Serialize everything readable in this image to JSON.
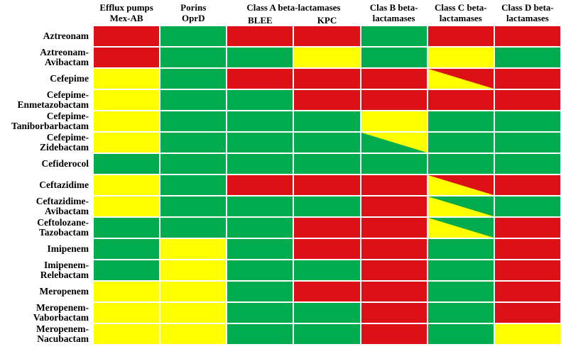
{
  "header": {
    "efflux_line1": "Efflux pumps",
    "efflux_line2": "Mex-AB",
    "porins_line1": "Porins",
    "porins_line2": "OprD",
    "classA_title": "Class A beta-lactamases",
    "classA_sub1": "BLEE",
    "classA_sub2": "KPC",
    "classB_line1": "Clas B beta-",
    "classB_line2": "lactamases",
    "classC_line1": "Class C beta-",
    "classC_line2": "lactamases",
    "classD_line1": "Class D beta-",
    "classD_line2": "lactamases"
  },
  "colors": {
    "R": "#dc1117",
    "G": "#00ac4e",
    "Y": "#ffff00",
    "grid": "#ffffff"
  },
  "chart_data": {
    "type": "heatmap",
    "title": "",
    "column_labels": [
      "Efflux pumps Mex-AB",
      "Porins OprD",
      "Class A beta-lactamases BLEE",
      "Class A beta-lactamases KPC",
      "Clas B beta-lactamases",
      "Class C beta-lactamases",
      "Class D beta-lactamases"
    ],
    "row_labels": [
      "Aztreonam",
      "Aztreonam-Avibactam",
      "Cefepime",
      "Cefepime-Enmetazobactam",
      "Cefepime-Taniborbarbactam",
      "Cefepime-Zidebactam",
      "Cefiderocol",
      "Ceftazidime",
      "Ceftazidime-Avibactam",
      "Ceftolozane-Tazobactam",
      "Imipenem",
      "Imipenem-Relebactam",
      "Meropenem",
      "Meropenem-Vaborbactam",
      "Meropenem-Nacubactam"
    ],
    "cell_color_codes": {
      "R": "red",
      "G": "green",
      "Y": "yellow",
      "X/Z": "diagonally split cell: X = bottom-left triangle color, Z = top-right triangle color"
    },
    "values": [
      [
        "R",
        "G",
        "R",
        "R",
        "G",
        "R",
        "R"
      ],
      [
        "R",
        "G",
        "G",
        "Y",
        "G",
        "Y",
        "G"
      ],
      [
        "Y",
        "G",
        "R",
        "R",
        "R",
        "Y/R",
        "R"
      ],
      [
        "Y",
        "G",
        "G",
        "R",
        "R",
        "R",
        "R"
      ],
      [
        "Y",
        "G",
        "G",
        "G",
        "Y",
        "G",
        "G"
      ],
      [
        "Y",
        "G",
        "G",
        "G",
        "G/Y",
        "G",
        "G"
      ],
      [
        "G",
        "G",
        "G",
        "G",
        "G",
        "G",
        "G"
      ],
      [
        "Y",
        "G",
        "R",
        "R",
        "R",
        "Y/R",
        "R"
      ],
      [
        "Y",
        "G",
        "G",
        "G",
        "R",
        "Y/G",
        "G"
      ],
      [
        "G",
        "G",
        "G",
        "R",
        "R",
        "Y/G",
        "R"
      ],
      [
        "G",
        "Y",
        "G",
        "R",
        "R",
        "G",
        "R"
      ],
      [
        "G",
        "Y",
        "G",
        "G",
        "R",
        "G",
        "R"
      ],
      [
        "Y",
        "Y",
        "G",
        "R",
        "R",
        "G",
        "R"
      ],
      [
        "Y",
        "Y",
        "G",
        "G",
        "R",
        "G",
        "R"
      ],
      [
        "Y",
        "Y",
        "G",
        "G",
        "R",
        "G",
        "Y"
      ]
    ],
    "legend_position": "none",
    "grid": true
  }
}
